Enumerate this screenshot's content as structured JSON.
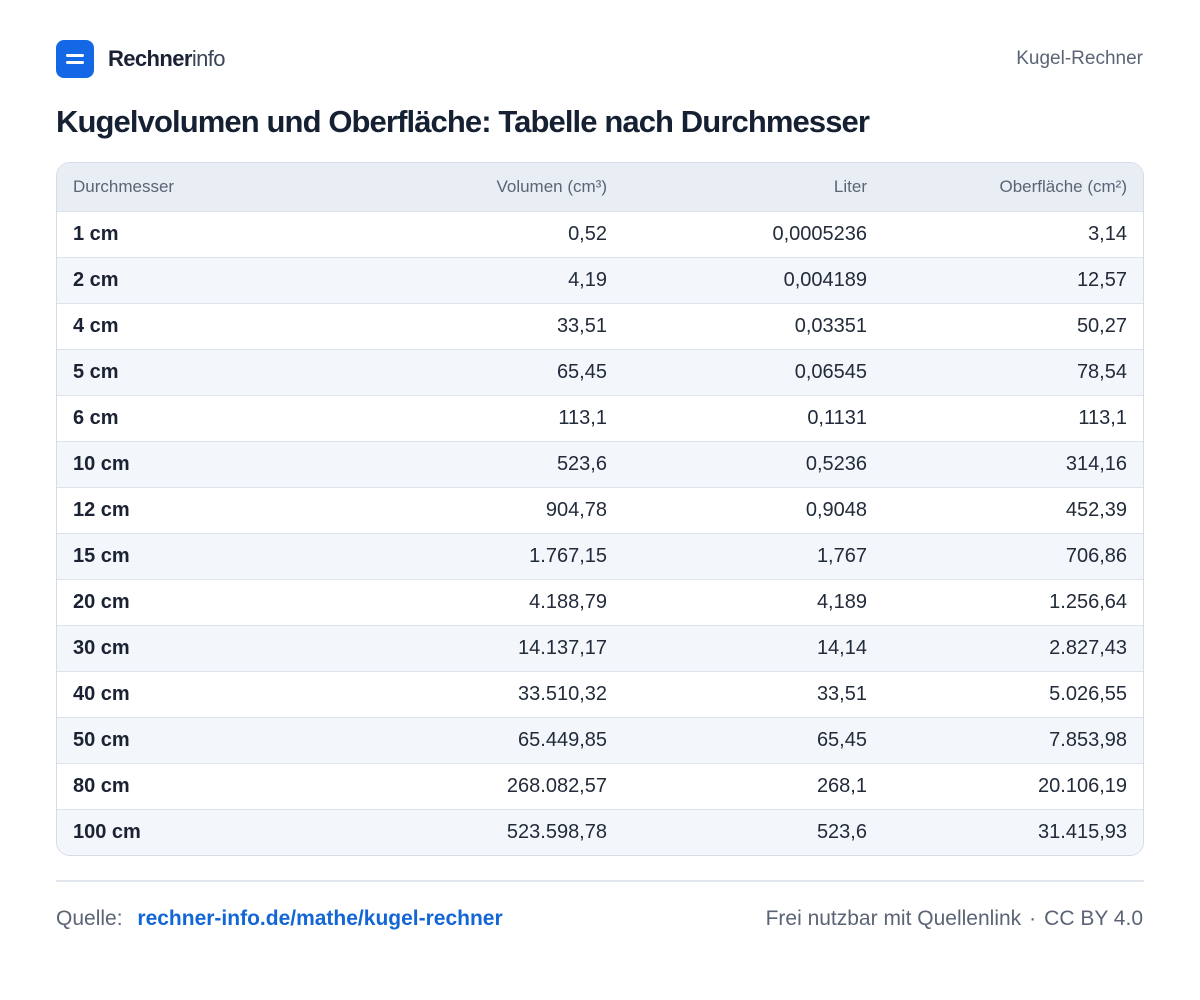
{
  "colors": {
    "accent": "#1468e5",
    "link": "#1366d6",
    "header_bg": "#e9eef5",
    "zebra": "#f3f6fa"
  },
  "header": {
    "logo_icon": "equals-icon",
    "brand_strong": "Rechner",
    "brand_light": "info",
    "page_label": "Kugel-Rechner"
  },
  "title": "Kugelvolumen und Oberfläche: Tabelle nach Durchmesser",
  "table": {
    "columns": [
      "Durchmesser",
      "Volumen (cm³)",
      "Liter",
      "Oberfläche (cm²)"
    ],
    "rows": [
      [
        "1 cm",
        "0,52",
        "0,0005236",
        "3,14"
      ],
      [
        "2 cm",
        "4,19",
        "0,004189",
        "12,57"
      ],
      [
        "4 cm",
        "33,51",
        "0,03351",
        "50,27"
      ],
      [
        "5 cm",
        "65,45",
        "0,06545",
        "78,54"
      ],
      [
        "6 cm",
        "113,1",
        "0,1131",
        "113,1"
      ],
      [
        "10 cm",
        "523,6",
        "0,5236",
        "314,16"
      ],
      [
        "12 cm",
        "904,78",
        "0,9048",
        "452,39"
      ],
      [
        "15 cm",
        "1.767,15",
        "1,767",
        "706,86"
      ],
      [
        "20 cm",
        "4.188,79",
        "4,189",
        "1.256,64"
      ],
      [
        "30 cm",
        "14.137,17",
        "14,14",
        "2.827,43"
      ],
      [
        "40 cm",
        "33.510,32",
        "33,51",
        "5.026,55"
      ],
      [
        "50 cm",
        "65.449,85",
        "65,45",
        "7.853,98"
      ],
      [
        "80 cm",
        "268.082,57",
        "268,1",
        "20.106,19"
      ],
      [
        "100 cm",
        "523.598,78",
        "523,6",
        "31.415,93"
      ]
    ]
  },
  "footer": {
    "source_label": "Quelle:",
    "source_link": "rechner-info.de/mathe/kugel-rechner",
    "license_text": "Frei nutzbar mit Quellenlink",
    "separator": "·",
    "license": "CC BY 4.0"
  }
}
